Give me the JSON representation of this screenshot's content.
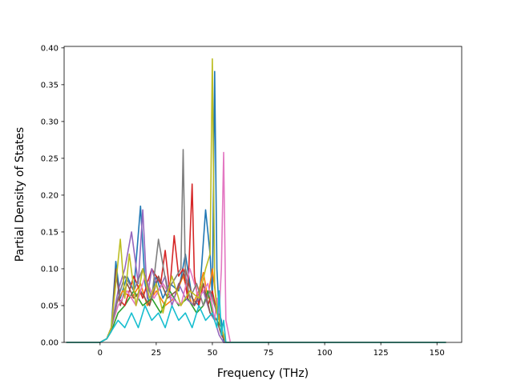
{
  "chart_data": {
    "type": "line",
    "title": "",
    "xlabel": "Frequency (THz)",
    "ylabel": "Partial Density of States",
    "xlim": [
      -16,
      161
    ],
    "ylim": [
      0,
      0.402
    ],
    "xticks": [
      0,
      25,
      50,
      75,
      100,
      125,
      150
    ],
    "xtick_labels": [
      "0",
      "25",
      "50",
      "75",
      "100",
      "125",
      "150"
    ],
    "yticks": [
      0.0,
      0.05,
      0.1,
      0.15,
      0.2,
      0.25,
      0.3,
      0.35,
      0.4
    ],
    "ytick_labels": [
      "0.00",
      "0.05",
      "0.10",
      "0.15",
      "0.20",
      "0.25",
      "0.30",
      "0.35",
      "0.40"
    ],
    "grid": false,
    "legend": "none",
    "series_colors": [
      "#1f77b4",
      "#ff7f0e",
      "#2ca02c",
      "#d62728",
      "#9467bd",
      "#8c564b",
      "#e377c2",
      "#7f7f7f",
      "#bcbd22",
      "#17becf"
    ],
    "series": [
      {
        "color": "#1f77b4",
        "x": [
          -15,
          0,
          3,
          5,
          7,
          9,
          12,
          15,
          18,
          20,
          22,
          25,
          28,
          31,
          35,
          38,
          41,
          44,
          47,
          49,
          50,
          51,
          52,
          53,
          54,
          55,
          56,
          58,
          60,
          80,
          100,
          130,
          154
        ],
        "y": [
          0,
          0,
          0.005,
          0.02,
          0.11,
          0.06,
          0.09,
          0.07,
          0.185,
          0.08,
          0.05,
          0.09,
          0.06,
          0.08,
          0.07,
          0.12,
          0.06,
          0.05,
          0.18,
          0.12,
          0.06,
          0.368,
          0.1,
          0.04,
          0.03,
          0,
          0,
          0,
          0,
          0,
          0,
          0,
          0
        ]
      },
      {
        "color": "#ff7f0e",
        "x": [
          -15,
          0,
          3,
          5,
          7,
          10,
          14,
          18,
          21,
          25,
          29,
          33,
          37,
          41,
          44,
          46,
          48,
          50,
          52,
          54,
          56,
          60,
          154
        ],
        "y": [
          0,
          0,
          0.005,
          0.02,
          0.05,
          0.07,
          0.06,
          0.08,
          0.05,
          0.07,
          0.05,
          0.06,
          0.09,
          0.05,
          0.07,
          0.095,
          0.06,
          0.1,
          0.05,
          0.02,
          0,
          0,
          0
        ]
      },
      {
        "color": "#2ca02c",
        "x": [
          -15,
          0,
          3,
          5,
          8,
          11,
          15,
          19,
          23,
          27,
          31,
          35,
          39,
          43,
          46,
          48,
          50,
          52,
          54,
          56,
          60,
          154
        ],
        "y": [
          0,
          0,
          0.005,
          0.015,
          0.04,
          0.05,
          0.07,
          0.05,
          0.06,
          0.04,
          0.07,
          0.05,
          0.06,
          0.04,
          0.05,
          0.07,
          0.04,
          0.03,
          0.02,
          0,
          0,
          0
        ]
      },
      {
        "color": "#d62728",
        "x": [
          -15,
          0,
          3,
          5,
          8,
          11,
          15,
          19,
          23,
          27,
          29,
          31,
          33,
          35,
          37,
          39,
          41,
          42,
          44,
          46,
          48,
          50,
          52,
          54,
          56,
          60,
          154
        ],
        "y": [
          0,
          0,
          0.005,
          0.02,
          0.06,
          0.05,
          0.09,
          0.06,
          0.1,
          0.08,
          0.125,
          0.07,
          0.145,
          0.09,
          0.1,
          0.06,
          0.215,
          0.09,
          0.05,
          0.08,
          0.05,
          0.07,
          0.04,
          0.02,
          0,
          0,
          0
        ]
      },
      {
        "color": "#9467bd",
        "x": [
          -15,
          0,
          3,
          5,
          8,
          11,
          14,
          17,
          19,
          21,
          23,
          26,
          29,
          32,
          35,
          38,
          42,
          46,
          49,
          51,
          53,
          55,
          60,
          154
        ],
        "y": [
          0,
          0,
          0.005,
          0.02,
          0.07,
          0.1,
          0.15,
          0.08,
          0.18,
          0.06,
          0.1,
          0.07,
          0.09,
          0.05,
          0.08,
          0.06,
          0.05,
          0.07,
          0.04,
          0.03,
          0.01,
          0,
          0,
          0
        ]
      },
      {
        "color": "#8c564b",
        "x": [
          -15,
          0,
          3,
          5,
          7,
          9,
          12,
          15,
          18,
          22,
          26,
          30,
          34,
          38,
          42,
          46,
          49,
          52,
          54,
          56,
          60,
          154
        ],
        "y": [
          0,
          0,
          0.005,
          0.015,
          0.1,
          0.05,
          0.08,
          0.06,
          0.07,
          0.05,
          0.09,
          0.06,
          0.07,
          0.1,
          0.05,
          0.08,
          0.04,
          0.03,
          0.01,
          0,
          0,
          0
        ]
      },
      {
        "color": "#e377c2",
        "x": [
          -15,
          0,
          3,
          5,
          8,
          12,
          16,
          20,
          24,
          28,
          32,
          36,
          40,
          44,
          48,
          50,
          51,
          52,
          53,
          54,
          55,
          56,
          58,
          60,
          154
        ],
        "y": [
          0,
          0,
          0.005,
          0.02,
          0.05,
          0.07,
          0.05,
          0.09,
          0.06,
          0.08,
          0.06,
          0.05,
          0.1,
          0.06,
          0.08,
          0.05,
          0.03,
          0.06,
          0.04,
          0.1,
          0.258,
          0.03,
          0,
          0,
          0
        ]
      },
      {
        "color": "#7f7f7f",
        "x": [
          -15,
          0,
          3,
          5,
          8,
          11,
          15,
          19,
          23,
          26,
          30,
          34,
          36,
          37,
          38,
          40,
          43,
          46,
          49,
          52,
          54,
          56,
          60,
          154
        ],
        "y": [
          0,
          0,
          0.005,
          0.02,
          0.06,
          0.09,
          0.07,
          0.1,
          0.06,
          0.14,
          0.07,
          0.09,
          0.1,
          0.262,
          0.09,
          0.06,
          0.08,
          0.05,
          0.07,
          0.04,
          0.02,
          0,
          0,
          0
        ]
      },
      {
        "color": "#bcbd22",
        "x": [
          -15,
          0,
          3,
          5,
          7,
          9,
          11,
          13,
          16,
          19,
          22,
          25,
          28,
          32,
          36,
          40,
          44,
          47,
          49,
          50,
          51,
          52,
          54,
          56,
          60,
          154
        ],
        "y": [
          0,
          0,
          0.005,
          0.02,
          0.08,
          0.14,
          0.06,
          0.12,
          0.05,
          0.1,
          0.06,
          0.08,
          0.04,
          0.09,
          0.05,
          0.07,
          0.06,
          0.1,
          0.12,
          0.385,
          0.08,
          0.04,
          0.02,
          0,
          0,
          0
        ]
      },
      {
        "color": "#17becf",
        "x": [
          -15,
          0,
          3,
          5,
          8,
          11,
          14,
          17,
          20,
          23,
          26,
          29,
          32,
          35,
          38,
          41,
          44,
          47,
          50,
          52,
          53,
          54,
          55,
          56,
          60,
          80,
          100,
          130,
          154
        ],
        "y": [
          0,
          0,
          0.005,
          0.015,
          0.03,
          0.02,
          0.04,
          0.02,
          0.05,
          0.03,
          0.04,
          0.02,
          0.05,
          0.03,
          0.04,
          0.02,
          0.05,
          0.03,
          0.04,
          0.02,
          0.07,
          0.01,
          0.03,
          0,
          0,
          0,
          0,
          0,
          0
        ]
      }
    ]
  }
}
